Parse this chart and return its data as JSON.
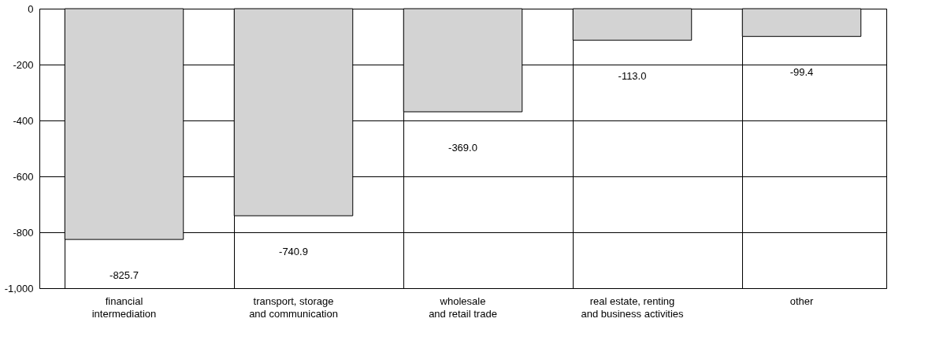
{
  "chart_data": {
    "type": "bar",
    "categories": [
      "financial\nintermediation",
      "transport, storage\nand communication",
      "wholesale\nand retail trade",
      "real estate, renting\nand business activities",
      "other"
    ],
    "values": [
      -825.7,
      -740.9,
      -369.0,
      -113.0,
      -99.4
    ],
    "color": "#d3d3d3",
    "value_labels": [
      "-825.7",
      "-740.9",
      "-369.0",
      "-113.0",
      "-99.4"
    ],
    "ylim": [
      -1000,
      0
    ],
    "yticks": [
      0,
      {
        "value": -200,
        "label": "-200"
      },
      {
        "value": -400,
        "label": "-400"
      },
      {
        "value": -600,
        "label": "-600"
      },
      {
        "value": -800,
        "label": "-800"
      },
      {
        "value": -1000,
        "label": "-1,000"
      }
    ],
    "grid": true
  }
}
